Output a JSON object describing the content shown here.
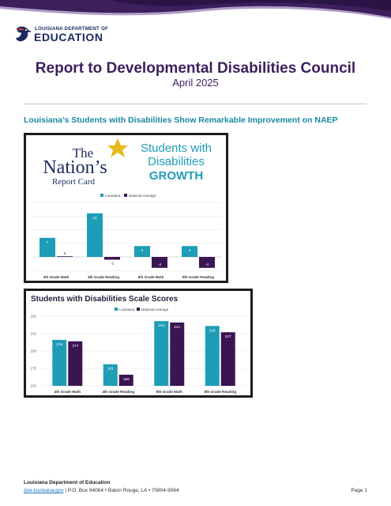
{
  "colors": {
    "brand_purple": "#3d1f5c",
    "banner_dark": "#2a1445",
    "teal": "#1f9db6",
    "dark_purple": "#3a1552"
  },
  "logo": {
    "line1": "LOUISIANA DEPARTMENT OF",
    "line2": "EDUCATION",
    "icon": "pelican-icon"
  },
  "header": {
    "title": "Report to Developmental Disabilities Council",
    "subtitle": "April 2025"
  },
  "headline": "Louisiana’s Students with Disabilities Show Remarkable Improvement on NAEP",
  "report_card": {
    "line1": "The",
    "line2": "Nation’s",
    "line3": "Report Card",
    "heading_line1": "Students with",
    "heading_line2": "Disabilities",
    "heading_line3": "GROWTH"
  },
  "chart_data": [
    {
      "type": "bar",
      "title": "",
      "categories": [
        "4th Grade Math",
        "4th Grade Reading",
        "8th Grade Math",
        "8th Grade Reading"
      ],
      "series": [
        {
          "name": "Louisiana",
          "color": "#1f9db6",
          "values": [
            7,
            16,
            4,
            4
          ]
        },
        {
          "name": "National Average",
          "color": "#3a1552",
          "values": [
            0,
            -1,
            -4,
            -4
          ]
        }
      ],
      "legend": "top-center",
      "grid": true
    },
    {
      "type": "bar",
      "title": "Students with Disabilities Scale Scores",
      "categories": [
        "4th Grade Math",
        "4th Grade Reading",
        "8th Grade Math",
        "8th Grade Reading"
      ],
      "series": [
        {
          "name": "Louisiana",
          "color": "#1f9db6",
          "values": [
            216,
            181,
            243,
            236
          ]
        },
        {
          "name": "National Average",
          "color": "#3a1552",
          "values": [
            214,
            166,
            241,
            227
          ]
        }
      ],
      "ylim": [
        150,
        250
      ],
      "yticks": [
        "150",
        "175",
        "200",
        "225",
        "250"
      ],
      "legend": "top-center",
      "grid": true
    }
  ],
  "footer": {
    "org": "Louisiana Department of Education",
    "link": "doe.louisiana.gov",
    "address": "P.O. Box 94064 • Baton Rouge, LA • 70804-9064",
    "page": "Page 1"
  }
}
